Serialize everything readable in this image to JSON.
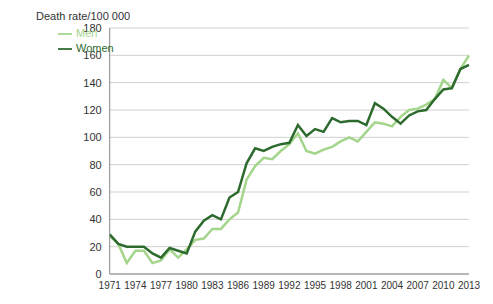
{
  "chart_data": {
    "type": "line",
    "y_label": "Death rate/100 000",
    "categories": [
      "1971",
      null,
      null,
      "1974",
      null,
      null,
      "1977",
      null,
      null,
      "1980",
      null,
      null,
      "1983",
      null,
      null,
      "1986",
      null,
      null,
      "1989",
      null,
      null,
      "1992",
      null,
      null,
      "1995",
      null,
      null,
      "1998",
      null,
      null,
      "2001",
      null,
      null,
      "2004",
      null,
      null,
      "2007",
      null,
      null,
      "2010",
      null,
      null,
      "2013"
    ],
    "series": [
      {
        "name": "Men",
        "color": "#a3d58b",
        "values": [
          28,
          22,
          8,
          17,
          17,
          8,
          10,
          18,
          12,
          18,
          25,
          26,
          33,
          33,
          40,
          45,
          69,
          79,
          85,
          84,
          90,
          95,
          103,
          90,
          88,
          91,
          93,
          97,
          100,
          97,
          104,
          111,
          110,
          108,
          115,
          120,
          121,
          124,
          128,
          142,
          136,
          150,
          160
        ]
      },
      {
        "name": "Women",
        "color": "#2d6a2e",
        "values": [
          29,
          22,
          20,
          20,
          20,
          15,
          12,
          19,
          17,
          15,
          31,
          39,
          43,
          40,
          56,
          60,
          81,
          92,
          90,
          93,
          95,
          96,
          109,
          101,
          106,
          104,
          114,
          111,
          112,
          112,
          109,
          125,
          121,
          115,
          110,
          116,
          119,
          120,
          128,
          135,
          136,
          150,
          153
        ]
      }
    ],
    "ylim": [
      0,
      180
    ],
    "yticks": [
      0,
      20,
      40,
      60,
      80,
      100,
      120,
      140,
      160,
      180
    ],
    "grid": true,
    "legend": "upper left"
  }
}
